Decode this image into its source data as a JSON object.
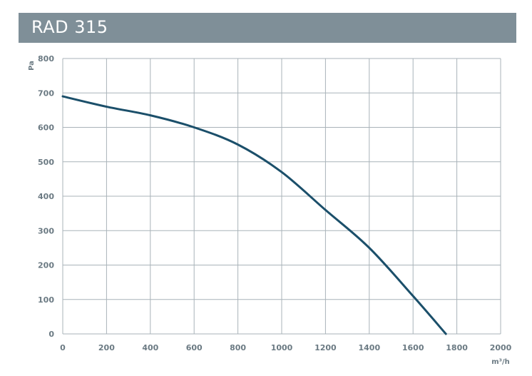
{
  "header": {
    "title": "RAD 315"
  },
  "chart_data": {
    "type": "line",
    "title": "RAD 315",
    "xlabel": "m³/h",
    "ylabel": "Pa",
    "xlim": [
      0,
      2000
    ],
    "ylim": [
      0,
      800
    ],
    "x_ticks": [
      "0",
      "200",
      "400",
      "600",
      "800",
      "1000",
      "1200",
      "1400",
      "1600",
      "1800",
      "2000"
    ],
    "y_ticks": [
      "0",
      "100",
      "200",
      "300",
      "400",
      "500",
      "600",
      "700",
      "800"
    ],
    "grid": true,
    "colors": {
      "curve": "#1b4f6a",
      "grid": "#a9b3b9",
      "header": "#7f8f98"
    },
    "series": [
      {
        "x": [
          0,
          200,
          400,
          600,
          800,
          1000,
          1200,
          1400,
          1600,
          1750
        ],
        "y": [
          690,
          660,
          635,
          600,
          550,
          470,
          360,
          250,
          110,
          0
        ]
      }
    ]
  }
}
